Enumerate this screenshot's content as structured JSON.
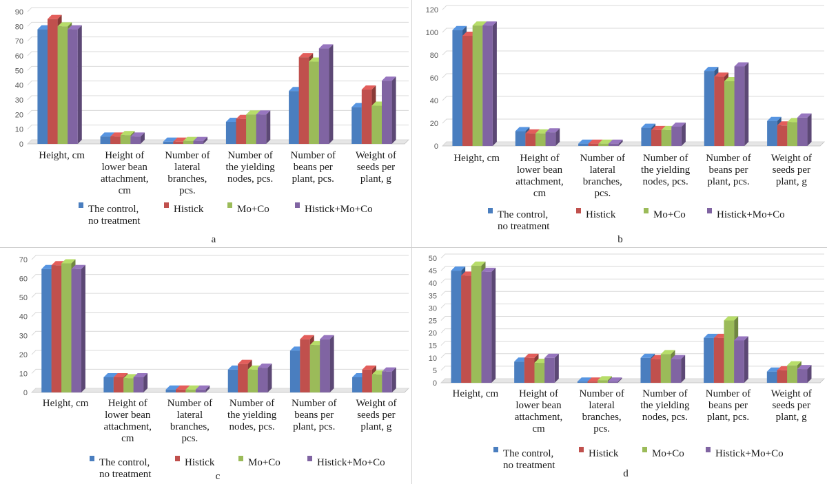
{
  "legend": [
    "The control, no treatment",
    "Histick",
    "Mo+Co",
    "Histick+Mo+Co"
  ],
  "colors": [
    "#4a7ebf",
    "#c0504d",
    "#9bbb59",
    "#8064a2"
  ],
  "categories": [
    "Height, cm",
    "Height of lower bean attachment, cm",
    "Number of lateral branches, pcs.",
    "Number of the yielding nodes, pcs.",
    "Number of beans per plant, pcs.",
    "Weight of seeds per plant, g"
  ],
  "chart_data": [
    {
      "type": "bar",
      "label": "a",
      "categories": [
        "Height, cm",
        "Height of lower bean attachment, cm",
        "Number of lateral branches, pcs.",
        "Number of the yielding nodes, pcs.",
        "Number of beans per plant, pcs.",
        "Weight of seeds per plant, g"
      ],
      "ylim": [
        0,
        90
      ],
      "yticks": [
        0,
        10,
        20,
        30,
        40,
        50,
        60,
        70,
        80,
        90
      ],
      "grid": true,
      "legend_position": "bottom",
      "series": [
        {
          "name": "The control, no treatment",
          "values": [
            78,
            5,
            1.5,
            15,
            36,
            25
          ]
        },
        {
          "name": "Histick",
          "values": [
            85,
            5,
            1.5,
            17,
            59,
            37
          ]
        },
        {
          "name": "Mo+Co",
          "values": [
            80,
            6,
            2,
            20,
            56,
            26
          ]
        },
        {
          "name": "Histick+Mo+Co",
          "values": [
            78,
            5,
            2,
            20,
            65,
            43
          ]
        }
      ]
    },
    {
      "type": "bar",
      "label": "b",
      "categories": [
        "Height, cm",
        "Height of lower bean attachment, cm",
        "Number of lateral branches, pcs.",
        "Number of the yielding nodes, pcs.",
        "Number of beans per plant, pcs.",
        "Weight of seeds per plant, g"
      ],
      "ylim": [
        0,
        120
      ],
      "yticks": [
        0,
        20,
        40,
        60,
        80,
        100,
        120
      ],
      "grid": true,
      "legend_position": "bottom",
      "series": [
        {
          "name": "The control, no treatment",
          "values": [
            102,
            13,
            2,
            16,
            66,
            22
          ]
        },
        {
          "name": "Histick",
          "values": [
            97,
            11,
            2,
            14,
            61,
            18
          ]
        },
        {
          "name": "Mo+Co",
          "values": [
            106,
            11,
            2,
            14,
            57,
            21
          ]
        },
        {
          "name": "Histick+Mo+Co",
          "values": [
            106,
            12,
            2,
            17,
            70,
            25
          ]
        }
      ]
    },
    {
      "type": "bar",
      "label": "c",
      "categories": [
        "Height, cm",
        "Height of lower bean attachment, cm",
        "Number of lateral branches, pcs.",
        "Number of the yielding nodes, pcs.",
        "Number of beans per plant, pcs.",
        "Weight of seeds per plant, g"
      ],
      "ylim": [
        0,
        70
      ],
      "yticks": [
        0,
        10,
        20,
        30,
        40,
        50,
        60,
        70
      ],
      "grid": true,
      "legend_position": "bottom",
      "series": [
        {
          "name": "The control, no treatment",
          "values": [
            65,
            8,
            1.5,
            12,
            22,
            8
          ]
        },
        {
          "name": "Histick",
          "values": [
            67,
            8,
            1.5,
            15,
            28,
            12
          ]
        },
        {
          "name": "Mo+Co",
          "values": [
            68,
            7.5,
            1.5,
            12,
            25,
            9.5
          ]
        },
        {
          "name": "Histick+Mo+Co",
          "values": [
            65,
            8,
            1.5,
            13,
            28,
            11
          ]
        }
      ]
    },
    {
      "type": "bar",
      "label": "d",
      "categories": [
        "Height, cm",
        "Height of lower bean attachment, cm",
        "Number of lateral branches, pcs.",
        "Number of the yielding nodes, pcs.",
        "Number of beans per plant, pcs.",
        "Weight of seeds per plant, g"
      ],
      "ylim": [
        0,
        50
      ],
      "yticks": [
        0,
        5,
        10,
        15,
        20,
        25,
        30,
        35,
        40,
        45,
        50
      ],
      "grid": true,
      "legend_position": "bottom",
      "series": [
        {
          "name": "The control, no treatment",
          "values": [
            45,
            8.5,
            0.5,
            10,
            18,
            4.5
          ]
        },
        {
          "name": "Histick",
          "values": [
            43,
            10,
            0.5,
            9.5,
            18,
            5
          ]
        },
        {
          "name": "Mo+Co",
          "values": [
            47,
            8,
            1,
            11.5,
            25,
            7
          ]
        },
        {
          "name": "Histick+Mo+Co",
          "values": [
            44.5,
            10,
            0.5,
            9.5,
            17,
            5.5
          ]
        }
      ]
    }
  ]
}
